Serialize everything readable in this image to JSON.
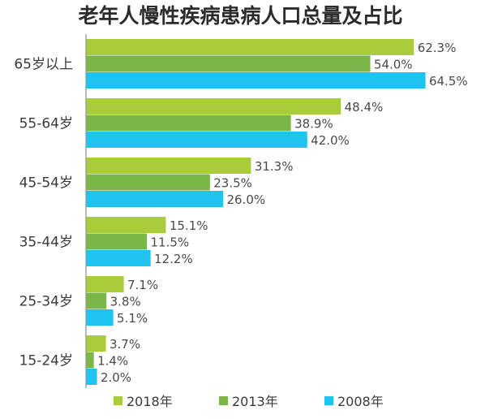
{
  "title": "老年人慢性疾病患病人口总量及占比",
  "legend_position": "bottom",
  "chart_data": {
    "type": "bar",
    "orientation": "horizontal",
    "title": "老年人慢性疾病患病人口总量及占比",
    "xlabel": "",
    "ylabel": "",
    "xlim": [
      0,
      70
    ],
    "grid": false,
    "categories": [
      "65岁以上",
      "55-64岁",
      "45-54岁",
      "35-44岁",
      "25-34岁",
      "15-24岁"
    ],
    "series": [
      {
        "name": "2018年",
        "color": "#a9cc3a",
        "values": [
          62.3,
          48.4,
          31.3,
          15.1,
          7.1,
          3.7
        ],
        "labels": [
          "62.3%",
          "48.4%",
          "31.3%",
          "15.1%",
          "7.1%",
          "3.7%"
        ]
      },
      {
        "name": "2013年",
        "color": "#7ab648",
        "values": [
          54.0,
          38.9,
          23.5,
          11.5,
          3.8,
          1.4
        ],
        "labels": [
          "54.0%",
          "38.9%",
          "23.5%",
          "11.5%",
          "3.8%",
          "1.4%"
        ]
      },
      {
        "name": "2008年",
        "color": "#1ec3ef",
        "values": [
          64.5,
          42.0,
          26.0,
          12.2,
          5.1,
          2.0
        ],
        "labels": [
          "64.5%",
          "42.0%",
          "26.0%",
          "12.2%",
          "5.1%",
          "2.0%"
        ]
      }
    ]
  }
}
